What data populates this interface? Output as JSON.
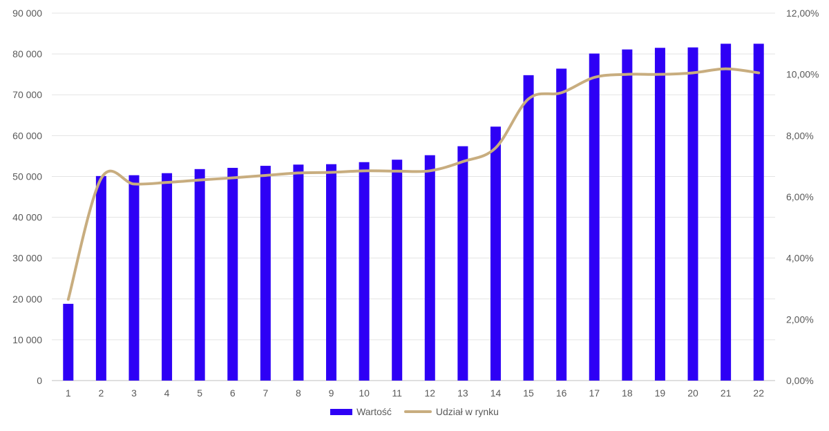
{
  "chart_data": {
    "type": "bar",
    "title": "",
    "xlabel": "",
    "ylabel": "",
    "categories": [
      "1",
      "2",
      "3",
      "4",
      "5",
      "6",
      "7",
      "8",
      "9",
      "10",
      "11",
      "12",
      "13",
      "14",
      "15",
      "16",
      "17",
      "18",
      "19",
      "20",
      "21",
      "22"
    ],
    "series": [
      {
        "name": "Wartość",
        "type": "bar",
        "axis": "left",
        "color": "#2E00F5",
        "values": [
          18800,
          50100,
          50300,
          50800,
          51800,
          52100,
          52600,
          52900,
          53000,
          53500,
          54100,
          55200,
          57400,
          62200,
          74800,
          76400,
          80100,
          81100,
          81500,
          81600,
          82500,
          82500
        ]
      },
      {
        "name": "Udział w rynku",
        "type": "line",
        "axis": "right",
        "color": "#C8AD7F",
        "values": [
          2.65,
          6.6,
          6.42,
          6.47,
          6.55,
          6.62,
          6.7,
          6.78,
          6.8,
          6.85,
          6.84,
          6.85,
          7.15,
          7.6,
          9.2,
          9.4,
          9.9,
          10.0,
          10.0,
          10.05,
          10.18,
          10.05
        ]
      }
    ],
    "ylim": [
      0,
      90000
    ],
    "y2lim": [
      0,
      12
    ],
    "y_ticks": [
      "0",
      "10 000",
      "20 000",
      "30 000",
      "40 000",
      "50 000",
      "60 000",
      "70 000",
      "80 000",
      "90 000"
    ],
    "y2_ticks": [
      "0,00%",
      "2,00%",
      "4,00%",
      "6,00%",
      "8,00%",
      "10,00%",
      "12,00%"
    ],
    "grid": true,
    "legend_position": "bottom"
  },
  "legend": {
    "bar_label": "Wartość",
    "line_label": "Udział w rynku"
  }
}
